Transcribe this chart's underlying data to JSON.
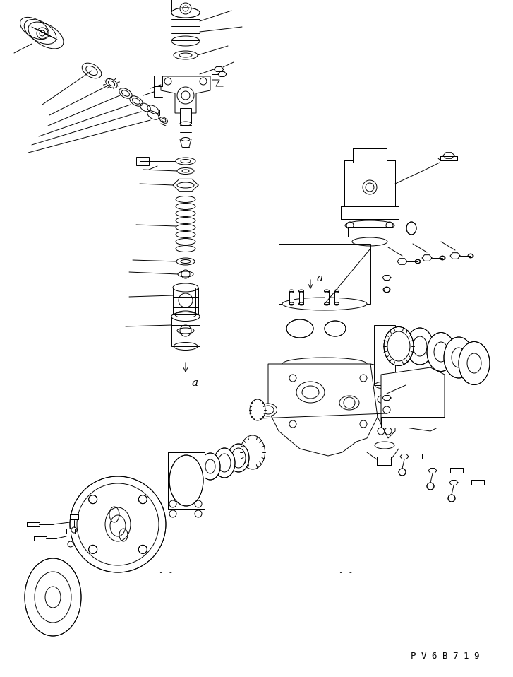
{
  "background_color": "#ffffff",
  "line_color": "#000000",
  "part_code": "P V 6 B 7 1 9",
  "figsize": [
    7.27,
    9.58
  ],
  "dpi": 100
}
